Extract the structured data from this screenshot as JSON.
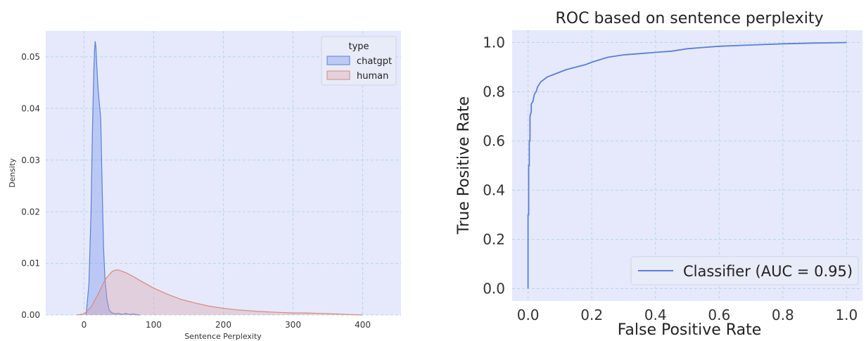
{
  "chart_data": [
    {
      "type": "area",
      "title": "",
      "xlabel": "Sentence Perplexity",
      "ylabel": "Density",
      "xlim": [
        -55,
        455
      ],
      "ylim": [
        0,
        0.055
      ],
      "xticks": [
        0,
        100,
        200,
        300,
        400
      ],
      "xtick_labels": [
        "0",
        "100",
        "200",
        "300",
        "400"
      ],
      "yticks": [
        0,
        0.01,
        0.02,
        0.03,
        0.04,
        0.05
      ],
      "ytick_labels": [
        "0.00",
        "0.01",
        "0.02",
        "0.03",
        "0.04",
        "0.05"
      ],
      "grid": true,
      "legend": {
        "title": "type",
        "placement": "top-right"
      },
      "series": [
        {
          "name": "chatgpt",
          "color": "#5b7fd6",
          "fill": "rgba(110,140,235,0.35)",
          "x": [
            3,
            7,
            10,
            12,
            14,
            15,
            16,
            17,
            18,
            20,
            22,
            24,
            26,
            28,
            30,
            33,
            36,
            40,
            45,
            50,
            55,
            60,
            65,
            70,
            75,
            80
          ],
          "y": [
            0,
            0.006,
            0.02,
            0.035,
            0.047,
            0.051,
            0.053,
            0.052,
            0.049,
            0.044,
            0.041,
            0.038,
            0.025,
            0.013,
            0.007,
            0.003,
            0.001,
            0.0004,
            0.0002,
            0.0003,
            0.0001,
            0.0003,
            0.0001,
            0.0002,
            0.0001,
            0
          ]
        },
        {
          "name": "human",
          "color": "#d98a7a",
          "fill": "rgba(220,160,170,0.35)",
          "x": [
            -10,
            0,
            10,
            20,
            30,
            40,
            45,
            50,
            60,
            70,
            80,
            100,
            120,
            140,
            160,
            180,
            200,
            220,
            250,
            280,
            300,
            320,
            340,
            360,
            380,
            400
          ],
          "y": [
            0,
            0.0002,
            0.0015,
            0.004,
            0.0068,
            0.0084,
            0.0087,
            0.0087,
            0.0082,
            0.0075,
            0.0067,
            0.0052,
            0.004,
            0.003,
            0.0023,
            0.0017,
            0.0013,
            0.001,
            0.0007,
            0.0005,
            0.0004,
            0.0004,
            0.0003,
            0.0002,
            0.0001,
            0
          ]
        }
      ]
    },
    {
      "type": "line",
      "title": "ROC based on sentence perplexity",
      "xlabel": "False Positive Rate",
      "ylabel": "True Positive Rate",
      "xlim": [
        -0.05,
        1.05
      ],
      "ylim": [
        -0.05,
        1.05
      ],
      "xticks": [
        0,
        0.2,
        0.4,
        0.6,
        0.8,
        1.0
      ],
      "xtick_labels": [
        "0.0",
        "0.2",
        "0.4",
        "0.6",
        "0.8",
        "1.0"
      ],
      "yticks": [
        0,
        0.2,
        0.4,
        0.6,
        0.8,
        1.0
      ],
      "ytick_labels": [
        "0.0",
        "0.2",
        "0.4",
        "0.6",
        "0.8",
        "1.0"
      ],
      "grid": true,
      "legend": {
        "placement": "bottom-right"
      },
      "series": [
        {
          "name": "Classifier (AUC = 0.95)",
          "color": "#5b7fd6",
          "x": [
            0,
            0,
            0.002,
            0.002,
            0.004,
            0.004,
            0.006,
            0.006,
            0.01,
            0.01,
            0.015,
            0.02,
            0.025,
            0.03,
            0.04,
            0.05,
            0.06,
            0.08,
            0.1,
            0.12,
            0.15,
            0.18,
            0.2,
            0.25,
            0.3,
            0.35,
            0.4,
            0.45,
            0.5,
            0.55,
            0.6,
            0.7,
            0.8,
            0.9,
            1.0
          ],
          "y": [
            0,
            0.3,
            0.3,
            0.5,
            0.5,
            0.6,
            0.6,
            0.7,
            0.72,
            0.75,
            0.76,
            0.79,
            0.8,
            0.82,
            0.84,
            0.85,
            0.86,
            0.87,
            0.88,
            0.89,
            0.9,
            0.91,
            0.92,
            0.94,
            0.95,
            0.955,
            0.96,
            0.965,
            0.975,
            0.98,
            0.985,
            0.99,
            0.995,
            0.998,
            1.0
          ]
        }
      ]
    }
  ]
}
